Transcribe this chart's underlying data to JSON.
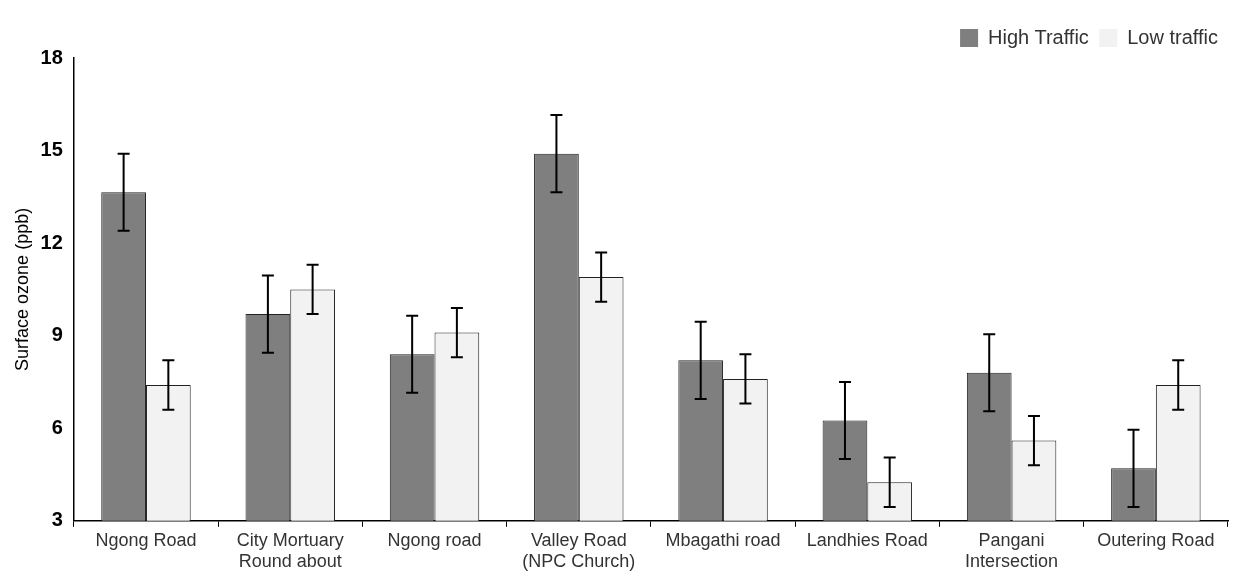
{
  "chart_data": {
    "type": "bar",
    "ylabel": "Surface ozone (ppb)",
    "categories": [
      "Ngong Road",
      "City Mortuary Round about",
      "Ngong road",
      "Valley Road (NPC Church)",
      "Mbagathi road",
      "Landhies Road",
      "Pangani Intersection",
      "Outering Road"
    ],
    "series": [
      {
        "name": "High Traffic",
        "color": "#7f7f7f",
        "values": [
          13.65,
          9.7,
          8.4,
          14.9,
          8.2,
          6.25,
          7.8,
          4.7
        ],
        "errors": [
          1.25,
          1.25,
          1.25,
          1.25,
          1.25,
          1.25,
          1.25,
          1.25
        ]
      },
      {
        "name": "Low traffic",
        "color": "#f2f2f2",
        "values": [
          7.4,
          10.5,
          9.1,
          10.9,
          7.6,
          4.25,
          5.6,
          7.4
        ],
        "errors": [
          0.8,
          0.8,
          0.8,
          0.8,
          0.8,
          0.8,
          0.8,
          0.8
        ]
      }
    ],
    "ylim": [
      3,
      18
    ],
    "yticks": [
      3,
      6,
      9,
      12,
      15,
      18
    ],
    "legend": "top right"
  }
}
